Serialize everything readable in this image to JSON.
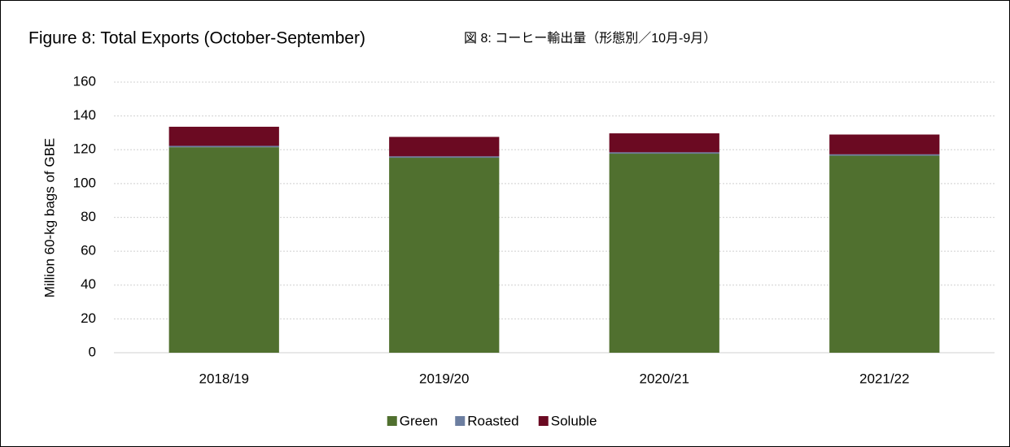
{
  "chart_data": {
    "type": "bar",
    "stacked": true,
    "title": "Figure 8: Total Exports (October-September)",
    "subtitle": "図 8: コーヒー輸出量（形態別／10月-9月）",
    "y_label": "Million 60-kg bags of GBE",
    "categories": [
      "2018/19",
      "2019/20",
      "2020/21",
      "2021/22"
    ],
    "series": [
      {
        "name": "Green",
        "color": "#50702f",
        "values": [
          121.5,
          115.3,
          117.7,
          116.5
        ]
      },
      {
        "name": "Roasted",
        "color": "#6c7ea0",
        "values": [
          0.8,
          0.8,
          0.8,
          0.8
        ]
      },
      {
        "name": "Soluble",
        "color": "#6b0a22",
        "values": [
          11.3,
          11.5,
          11.2,
          11.7
        ]
      }
    ],
    "ylim": [
      0,
      160
    ],
    "yticks": [
      0,
      20,
      40,
      60,
      80,
      100,
      120,
      140,
      160
    ],
    "grid": true,
    "legend": "bottom"
  }
}
